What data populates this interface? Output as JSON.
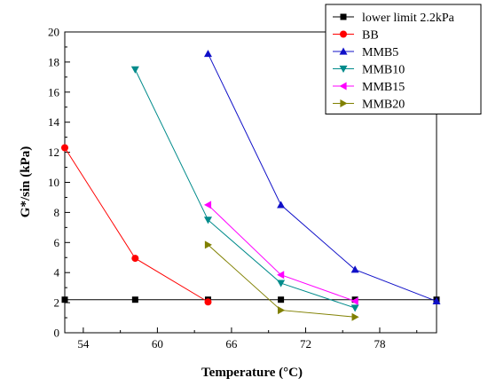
{
  "chart_data": {
    "type": "line",
    "xlabel": "Temperature (°C)",
    "ylabel": "G*/sin (kPa)",
    "xlim": [
      52.5,
      82.6
    ],
    "ylim": [
      0,
      20
    ],
    "x_ticks": [
      54,
      60,
      66,
      72,
      78
    ],
    "y_ticks": [
      0,
      2,
      4,
      6,
      8,
      10,
      12,
      14,
      16,
      18,
      20
    ],
    "grid": false,
    "legend_position": "top-right",
    "series": [
      {
        "name": "lower limit 2.2kPa",
        "color": "#000000",
        "marker": "square",
        "x": [
          52.5,
          58.2,
          64.1,
          70.0,
          76.0,
          82.6
        ],
        "y": [
          2.2,
          2.2,
          2.2,
          2.2,
          2.2,
          2.2
        ]
      },
      {
        "name": "BB",
        "color": "#ff0000",
        "marker": "circle",
        "x": [
          52.5,
          58.2,
          64.1
        ],
        "y": [
          12.3,
          4.95,
          2.05
        ]
      },
      {
        "name": "MMB5",
        "color": "#1010c8",
        "marker": "triangle-up",
        "x": [
          64.1,
          70.0,
          76.0,
          82.6
        ],
        "y": [
          18.55,
          8.5,
          4.2,
          2.1
        ]
      },
      {
        "name": "MMB10",
        "color": "#008b8b",
        "marker": "triangle-down",
        "x": [
          58.2,
          64.1,
          70.0,
          76.0
        ],
        "y": [
          17.5,
          7.5,
          3.3,
          1.65
        ]
      },
      {
        "name": "MMB15",
        "color": "#ff00ff",
        "marker": "triangle-left",
        "x": [
          64.1,
          70.0,
          76.0
        ],
        "y": [
          8.5,
          3.85,
          2.1
        ]
      },
      {
        "name": "MMB20",
        "color": "#808000",
        "marker": "triangle-right",
        "x": [
          64.1,
          70.0,
          76.0
        ],
        "y": [
          5.85,
          1.5,
          1.05
        ]
      }
    ]
  }
}
